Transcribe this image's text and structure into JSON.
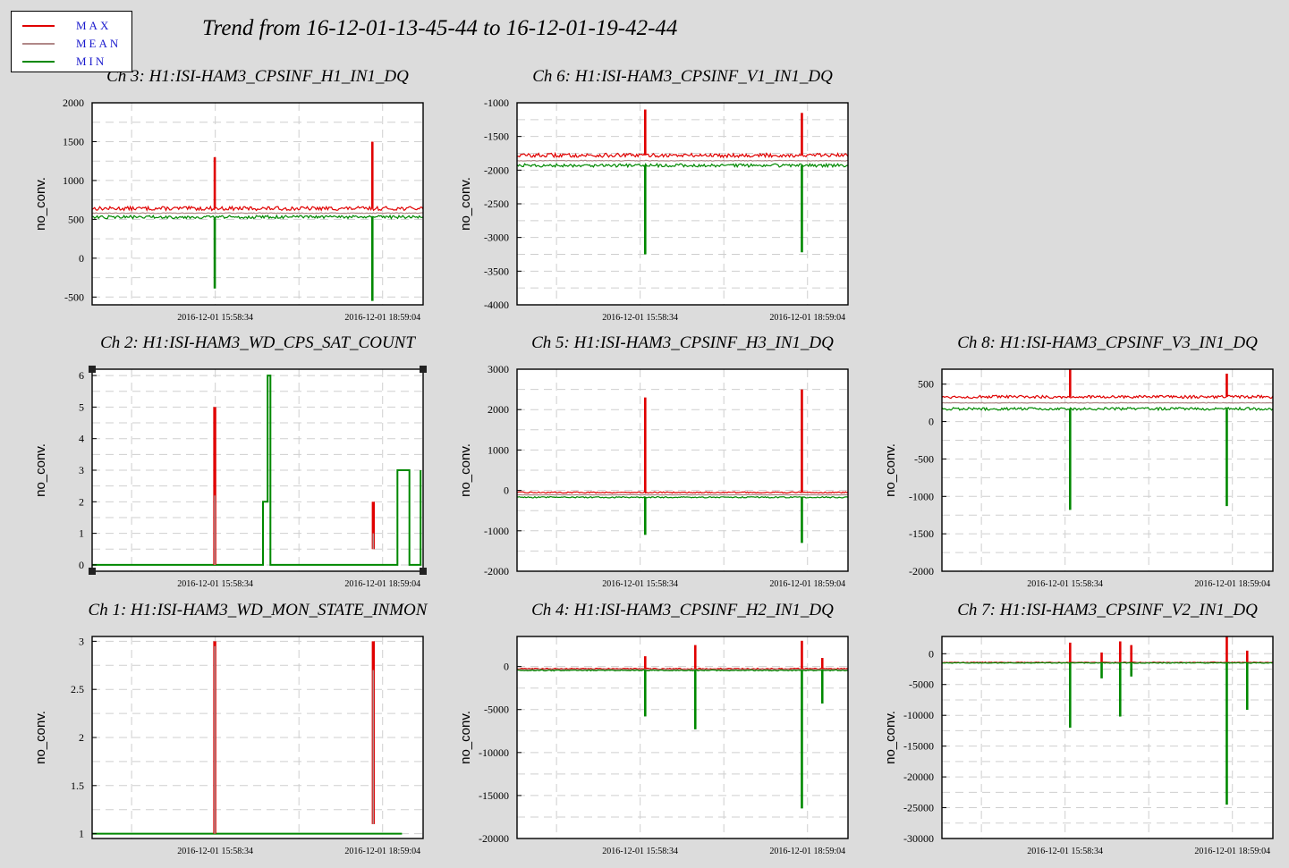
{
  "title": "Trend from 16-12-01-13-45-44 to 16-12-01-19-42-44",
  "legend": {
    "max": {
      "label": "MAX",
      "color": "#e00000"
    },
    "mean": {
      "label": "MEAN",
      "color": "#b08888"
    },
    "min": {
      "label": "MIN",
      "color": "#008800"
    }
  },
  "chart_data": [
    {
      "type": "line",
      "title": "Ch 3: H1:ISI-HAM3_CPSINF_H1_IN1_DQ",
      "ylabel": "no_conv.",
      "ylim": [
        -600,
        2000
      ],
      "yticks": [
        -500,
        0,
        500,
        1000,
        1500,
        2000
      ],
      "x_ticks": [
        "2016-12-01 15:58:34",
        "2016-12-01 18:59:04"
      ],
      "x_range": [
        "2016-12-01 13:45:44",
        "2016-12-01 19:42:44"
      ],
      "grid": true,
      "series": [
        {
          "name": "MAX",
          "baseline": 640,
          "noise": 25,
          "events": [
            {
              "t": "2016-12-01 15:58:00",
              "v": 1300
            },
            {
              "t": "2016-12-01 18:48:00",
              "v": 1500
            }
          ]
        },
        {
          "name": "MEAN",
          "baseline": 580,
          "noise": 5,
          "events": []
        },
        {
          "name": "MIN",
          "baseline": 530,
          "noise": 20,
          "events": [
            {
              "t": "2016-12-01 15:58:00",
              "v": -390
            },
            {
              "t": "2016-12-01 18:48:00",
              "v": -550
            }
          ]
        }
      ]
    },
    {
      "type": "line",
      "title": "Ch 6: H1:ISI-HAM3_CPSINF_V1_IN1_DQ",
      "ylabel": "no_conv.",
      "ylim": [
        -4000,
        -1000
      ],
      "yticks": [
        -4000,
        -3500,
        -3000,
        -2500,
        -2000,
        -1500,
        -1000
      ],
      "x_ticks": [
        "2016-12-01 15:58:34",
        "2016-12-01 18:59:04"
      ],
      "x_range": [
        "2016-12-01 13:45:44",
        "2016-12-01 19:42:44"
      ],
      "grid": true,
      "series": [
        {
          "name": "MAX",
          "baseline": -1780,
          "noise": 30,
          "events": [
            {
              "t": "2016-12-01 16:04:00",
              "v": -1100
            },
            {
              "t": "2016-12-01 18:53:00",
              "v": -1150
            }
          ]
        },
        {
          "name": "MEAN",
          "baseline": -1860,
          "noise": 5,
          "events": []
        },
        {
          "name": "MIN",
          "baseline": -1930,
          "noise": 25,
          "events": [
            {
              "t": "2016-12-01 16:04:00",
              "v": -3250
            },
            {
              "t": "2016-12-01 18:53:00",
              "v": -3220
            }
          ]
        }
      ]
    },
    {
      "type": "line",
      "title": "Ch 2: H1:ISI-HAM3_WD_CPS_SAT_COUNT",
      "ylabel": "no_conv.",
      "ylim": [
        -0.2,
        6.2
      ],
      "yticks": [
        0,
        1,
        2,
        3,
        4,
        5,
        6
      ],
      "x_ticks": [
        "2016-12-01 15:58:34",
        "2016-12-01 18:59:04"
      ],
      "x_range": [
        "2016-12-01 13:45:44",
        "2016-12-01 19:42:44"
      ],
      "grid": true,
      "steps": [
        {
          "x": "2016-12-01 13:45:44",
          "y": 0
        },
        {
          "x": "2016-12-01 16:50:00",
          "y": 2
        },
        {
          "x": "2016-12-01 16:55:00",
          "y": 6
        },
        {
          "x": "2016-12-01 16:58:00",
          "y": 0
        },
        {
          "x": "2016-12-01 19:15:00",
          "y": 3
        },
        {
          "x": "2016-12-01 19:28:00",
          "y": 0
        },
        {
          "x": "2016-12-01 19:40:00",
          "y": 3
        }
      ],
      "spikes": [
        {
          "x": "2016-12-01 15:58:00",
          "max": 5,
          "mean": 2.2,
          "min": 0
        },
        {
          "x": "2016-12-01 18:49:00",
          "max": 2,
          "mean": 1,
          "min": 0.5
        }
      ]
    },
    {
      "type": "line",
      "title": "Ch 5: H1:ISI-HAM3_CPSINF_H3_IN1_DQ",
      "ylabel": "no_conv.",
      "ylim": [
        -2000,
        3000
      ],
      "yticks": [
        -2000,
        -1000,
        0,
        1000,
        2000,
        3000
      ],
      "x_ticks": [
        "2016-12-01 15:58:34",
        "2016-12-01 18:59:04"
      ],
      "x_range": [
        "2016-12-01 13:45:44",
        "2016-12-01 19:42:44"
      ],
      "grid": true,
      "series": [
        {
          "name": "MAX",
          "baseline": -50,
          "noise": 15,
          "events": [
            {
              "t": "2016-12-01 16:04:00",
              "v": 2300
            },
            {
              "t": "2016-12-01 18:53:00",
              "v": 2500
            }
          ]
        },
        {
          "name": "MEAN",
          "baseline": -110,
          "noise": 4,
          "events": []
        },
        {
          "name": "MIN",
          "baseline": -170,
          "noise": 15,
          "events": [
            {
              "t": "2016-12-01 16:04:00",
              "v": -1100
            },
            {
              "t": "2016-12-01 18:53:00",
              "v": -1300
            }
          ]
        }
      ]
    },
    {
      "type": "line",
      "title": "Ch 8: H1:ISI-HAM3_CPSINF_V3_IN1_DQ",
      "ylabel": "no_conv.",
      "ylim": [
        -2000,
        700
      ],
      "yticks": [
        -2000,
        -1500,
        -1000,
        -500,
        0,
        500
      ],
      "x_ticks": [
        "2016-12-01 15:58:34",
        "2016-12-01 18:59:04"
      ],
      "x_range": [
        "2016-12-01 13:45:44",
        "2016-12-01 19:42:44"
      ],
      "grid": true,
      "series": [
        {
          "name": "MAX",
          "baseline": 330,
          "noise": 20,
          "events": [
            {
              "t": "2016-12-01 16:04:00",
              "v": 700
            },
            {
              "t": "2016-12-01 18:53:00",
              "v": 640
            }
          ]
        },
        {
          "name": "MEAN",
          "baseline": 250,
          "noise": 4,
          "events": []
        },
        {
          "name": "MIN",
          "baseline": 170,
          "noise": 18,
          "events": [
            {
              "t": "2016-12-01 16:04:00",
              "v": -1180
            },
            {
              "t": "2016-12-01 18:53:00",
              "v": -1130
            }
          ]
        }
      ]
    },
    {
      "type": "line",
      "title": "Ch 1: H1:ISI-HAM3_WD_MON_STATE_INMON",
      "ylabel": "no_conv.",
      "ylim": [
        0.95,
        3.05
      ],
      "yticks": [
        1,
        1.5,
        2,
        2.5,
        3
      ],
      "x_ticks": [
        "2016-12-01 15:58:34",
        "2016-12-01 18:59:04"
      ],
      "x_range": [
        "2016-12-01 13:45:44",
        "2016-12-01 19:42:44"
      ],
      "grid": true,
      "steps": [
        {
          "x": "2016-12-01 13:45:44",
          "y": 1
        },
        {
          "x": "2016-12-01 19:20:00",
          "y": 1
        }
      ],
      "spikes": [
        {
          "x": "2016-12-01 15:58:00",
          "max": 3,
          "mean": 2.95,
          "min": 1
        },
        {
          "x": "2016-12-01 18:49:00",
          "max": 3,
          "mean": 2.7,
          "min": 1.1
        }
      ]
    },
    {
      "type": "line",
      "title": "Ch 4: H1:ISI-HAM3_CPSINF_H2_IN1_DQ",
      "ylabel": "no_conv.",
      "ylim": [
        -20000,
        3500
      ],
      "yticks": [
        -20000,
        -15000,
        -10000,
        -5000,
        0
      ],
      "x_ticks": [
        "2016-12-01 15:58:34",
        "2016-12-01 18:59:04"
      ],
      "x_range": [
        "2016-12-01 13:45:44",
        "2016-12-01 19:42:44"
      ],
      "grid": true,
      "series": [
        {
          "name": "MAX",
          "baseline": -250,
          "noise": 60,
          "events": [
            {
              "t": "2016-12-01 16:04:00",
              "v": 1200
            },
            {
              "t": "2016-12-01 16:58:00",
              "v": 2500
            },
            {
              "t": "2016-12-01 18:53:00",
              "v": 3000
            },
            {
              "t": "2016-12-01 19:15:00",
              "v": 1000
            }
          ]
        },
        {
          "name": "MEAN",
          "baseline": -350,
          "noise": 15,
          "events": []
        },
        {
          "name": "MIN",
          "baseline": -450,
          "noise": 60,
          "events": [
            {
              "t": "2016-12-01 16:04:00",
              "v": -5800
            },
            {
              "t": "2016-12-01 16:58:00",
              "v": -7300
            },
            {
              "t": "2016-12-01 18:53:00",
              "v": -16500
            },
            {
              "t": "2016-12-01 19:15:00",
              "v": -4300
            }
          ]
        }
      ]
    },
    {
      "type": "line",
      "title": "Ch 7: H1:ISI-HAM3_CPSINF_V2_IN1_DQ",
      "ylabel": "no_conv.",
      "ylim": [
        -30000,
        2800
      ],
      "yticks": [
        -30000,
        -25000,
        -20000,
        -15000,
        -10000,
        -5000,
        0
      ],
      "x_ticks": [
        "2016-12-01 15:58:34",
        "2016-12-01 18:59:04"
      ],
      "x_range": [
        "2016-12-01 13:45:44",
        "2016-12-01 19:42:44"
      ],
      "grid": true,
      "series": [
        {
          "name": "MAX",
          "baseline": -1400,
          "noise": 60,
          "events": [
            {
              "t": "2016-12-01 16:04:00",
              "v": 1800
            },
            {
              "t": "2016-12-01 16:38:00",
              "v": 200
            },
            {
              "t": "2016-12-01 16:58:00",
              "v": 2000
            },
            {
              "t": "2016-12-01 17:10:00",
              "v": 1400
            },
            {
              "t": "2016-12-01 18:53:00",
              "v": 2800
            },
            {
              "t": "2016-12-01 19:15:00",
              "v": 500
            }
          ]
        },
        {
          "name": "MEAN",
          "baseline": -1450,
          "noise": 15,
          "events": []
        },
        {
          "name": "MIN",
          "baseline": -1500,
          "noise": 60,
          "events": [
            {
              "t": "2016-12-01 16:04:00",
              "v": -12000
            },
            {
              "t": "2016-12-01 16:38:00",
              "v": -4000
            },
            {
              "t": "2016-12-01 16:58:00",
              "v": -10200
            },
            {
              "t": "2016-12-01 17:10:00",
              "v": -3700
            },
            {
              "t": "2016-12-01 18:53:00",
              "v": -24500
            },
            {
              "t": "2016-12-01 19:15:00",
              "v": -9100
            }
          ]
        }
      ]
    }
  ]
}
